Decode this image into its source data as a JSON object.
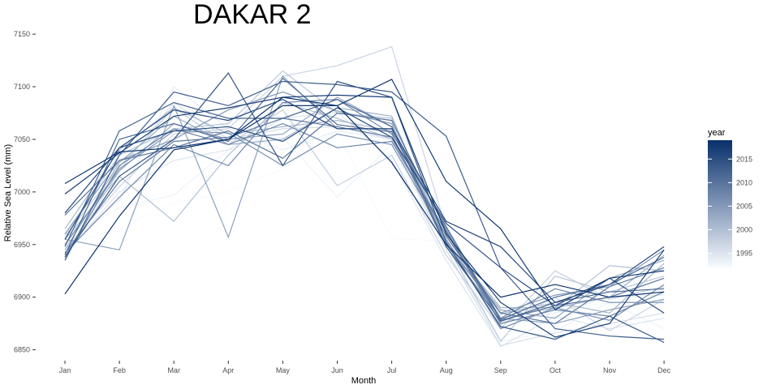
{
  "chart_data": {
    "type": "line",
    "title": "DAKAR 2",
    "xlabel": "Month",
    "ylabel": "Relative Sea Level (mm)",
    "categories": [
      "Jan",
      "Feb",
      "Mar",
      "Apr",
      "May",
      "Jun",
      "Jul",
      "Aug",
      "Sep",
      "Oct",
      "Nov",
      "Dec"
    ],
    "y_ticks": [
      6850,
      6900,
      6950,
      7000,
      7050,
      7100,
      7150
    ],
    "ylim": [
      6842,
      7157
    ],
    "grid": false,
    "legend": {
      "title": "year",
      "placement": "right",
      "type": "colorbar",
      "range": [
        1992,
        2019
      ],
      "ticks": [
        1995,
        2000,
        2005,
        2010,
        2015
      ],
      "color_low": "#f7fbff",
      "color_high": "#08306b"
    },
    "series": [
      {
        "year": 1992,
        "values": [
          6950,
          6965,
          6990,
          7000,
          7022,
          7058,
          6956,
          6953,
          6860,
          6888,
          6895,
          6900
        ]
      },
      {
        "year": 1993,
        "values": [
          6955,
          6985,
          6997,
          7040,
          7052,
          6995,
          7045,
          6945,
          6858,
          6868,
          6895,
          6870
        ]
      },
      {
        "year": 1994,
        "values": [
          6950,
          6992,
          7100,
          7060,
          7040,
          7058,
          7050,
          6960,
          6875,
          6885,
          6900,
          6902
        ]
      },
      {
        "year": 1995,
        "values": [
          6940,
          7000,
          7030,
          7040,
          7070,
          7076,
          7030,
          6935,
          6853,
          6882,
          6870,
          6880
        ]
      },
      {
        "year": 1996,
        "values": [
          6938,
          7020,
          7085,
          7050,
          7060,
          7062,
          7050,
          6945,
          6854,
          6866,
          6875,
          6885
        ]
      },
      {
        "year": 1997,
        "values": [
          6945,
          7005,
          7055,
          7060,
          7110,
          7120,
          7138,
          6965,
          6874,
          6900,
          6868,
          6898
        ]
      },
      {
        "year": 1998,
        "values": [
          6958,
          7024,
          7080,
          7045,
          7078,
          7006,
          7035,
          6940,
          6870,
          6925,
          6898,
          6910
        ]
      },
      {
        "year": 1999,
        "values": [
          6960,
          7035,
          7060,
          7065,
          7115,
          7075,
          7070,
          6950,
          6858,
          6920,
          6905,
          6920
        ]
      },
      {
        "year": 2000,
        "values": [
          6955,
          7015,
          6972,
          7035,
          7085,
          7070,
          7050,
          6955,
          6880,
          6890,
          6930,
          6925
        ]
      },
      {
        "year": 2001,
        "values": [
          6965,
          7040,
          7080,
          7055,
          7062,
          7068,
          7058,
          6958,
          6884,
          6895,
          6885,
          6932
        ]
      },
      {
        "year": 2002,
        "values": [
          6945,
          7028,
          7072,
          7045,
          7050,
          7080,
          7072,
          6953,
          6890,
          6890,
          6900,
          6940
        ]
      },
      {
        "year": 2003,
        "values": [
          6950,
          7020,
          7065,
          7050,
          7055,
          7090,
          7062,
          6950,
          6888,
          6880,
          6918,
          6935
        ]
      },
      {
        "year": 2004,
        "values": [
          6955,
          6945,
          7082,
          6957,
          7110,
          7060,
          7060,
          6965,
          6880,
          6875,
          6888,
          6898
        ]
      },
      {
        "year": 2005,
        "values": [
          6960,
          7030,
          7050,
          7078,
          7095,
          7077,
          7065,
          6950,
          6885,
          6902,
          6910,
          6945
        ]
      },
      {
        "year": 2006,
        "values": [
          6950,
          7022,
          7058,
          7056,
          7025,
          7055,
          7045,
          6955,
          6870,
          6890,
          6878,
          6912
        ]
      },
      {
        "year": 2007,
        "values": [
          6942,
          6995,
          7045,
          7025,
          7085,
          7088,
          7055,
          6948,
          6880,
          6908,
          6895,
          6895
        ]
      },
      {
        "year": 2008,
        "values": [
          6938,
          7025,
          7060,
          7045,
          7065,
          7042,
          7048,
          6962,
          6875,
          6888,
          6882,
          6905
        ]
      },
      {
        "year": 2009,
        "values": [
          6942,
          7010,
          7048,
          7052,
          7070,
          7062,
          7052,
          6958,
          6885,
          6875,
          6910,
          6928
        ]
      },
      {
        "year": 2010,
        "values": [
          6978,
          7030,
          7042,
          7058,
          7032,
          7075,
          7068,
          6963,
          6878,
          6892,
          6900,
          6918
        ]
      },
      {
        "year": 2011,
        "values": [
          6940,
          7050,
          7065,
          7048,
          7108,
          7064,
          7057,
          6967,
          6879,
          6900,
          6912,
          6938
        ]
      },
      {
        "year": 2012,
        "values": [
          6948,
          7058,
          7085,
          7070,
          7070,
          7088,
          7062,
          6948,
          6877,
          6895,
          6905,
          6908
        ]
      },
      {
        "year": 2013,
        "values": [
          6935,
          7035,
          7095,
          7082,
          7105,
          7102,
          7095,
          7053,
          6928,
          6870,
          6863,
          6860
        ]
      },
      {
        "year": 2014,
        "values": [
          6938,
          7015,
          7050,
          7113,
          7025,
          7105,
          7090,
          6952,
          6872,
          6860,
          6882,
          6857
        ]
      },
      {
        "year": 2015,
        "values": [
          6955,
          7042,
          7058,
          7062,
          7048,
          7080,
          7052,
          6970,
          6928,
          6892,
          6918,
          6885
        ]
      },
      {
        "year": 2016,
        "values": [
          6980,
          7042,
          7078,
          7068,
          7088,
          7060,
          7060,
          6972,
          6948,
          6895,
          6912,
          6948
        ]
      },
      {
        "year": 2017,
        "values": [
          6998,
          7037,
          7072,
          7080,
          7090,
          7092,
          7090,
          6960,
          6895,
          6862,
          6875,
          6945
        ]
      },
      {
        "year": 2018,
        "values": [
          7008,
          7038,
          7042,
          7050,
          7082,
          7082,
          7107,
          7010,
          6965,
          6888,
          6918,
          6925
        ]
      },
      {
        "year": 2019,
        "values": [
          6903,
          6977,
          7040,
          7050,
          7090,
          7082,
          7028,
          6950,
          6900,
          6912,
          6900,
          6905
        ]
      }
    ]
  }
}
